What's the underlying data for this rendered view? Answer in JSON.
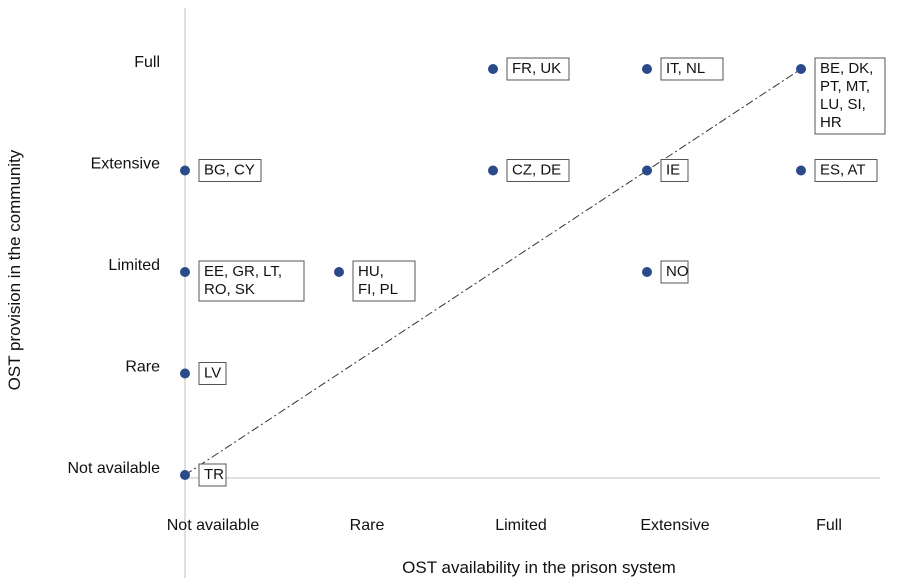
{
  "chart_data": {
    "type": "scatter",
    "title": "",
    "xlabel": "OST availability in the prison system",
    "ylabel": "OST provision in the community",
    "levels": [
      "Not available",
      "Rare",
      "Limited",
      "Extensive",
      "Full"
    ],
    "x_tick_labels": [
      "Not available",
      "Rare",
      "Limited",
      "Extensive",
      "Full"
    ],
    "y_tick_labels": [
      "Not available",
      "Rare",
      "Limited",
      "Extensive",
      "Full"
    ],
    "xlim": [
      0,
      4
    ],
    "ylim": [
      0,
      4
    ],
    "grid": false,
    "reference_line": {
      "style": "dash-dot",
      "from": [
        0,
        0
      ],
      "to": [
        4,
        4
      ]
    },
    "points": [
      {
        "x": 2,
        "y": 4,
        "label_lines": [
          "FR, UK"
        ]
      },
      {
        "x": 3,
        "y": 4,
        "label_lines": [
          "IT, NL"
        ]
      },
      {
        "x": 4,
        "y": 4,
        "label_lines": [
          "BE, DK,",
          "PT, MT,",
          "LU, SI,",
          "HR"
        ]
      },
      {
        "x": 0,
        "y": 3,
        "label_lines": [
          "BG, CY"
        ]
      },
      {
        "x": 2,
        "y": 3,
        "label_lines": [
          "CZ, DE"
        ]
      },
      {
        "x": 3,
        "y": 3,
        "label_lines": [
          "IE"
        ]
      },
      {
        "x": 4,
        "y": 3,
        "label_lines": [
          "ES, AT"
        ]
      },
      {
        "x": 0,
        "y": 2,
        "label_lines": [
          "EE, GR, LT,",
          "RO, SK"
        ]
      },
      {
        "x": 1,
        "y": 2,
        "label_lines": [
          "HU,",
          "FI, PL"
        ]
      },
      {
        "x": 3,
        "y": 2,
        "label_lines": [
          "NO"
        ]
      },
      {
        "x": 0,
        "y": 1,
        "label_lines": [
          "LV"
        ]
      },
      {
        "x": 0,
        "y": 0,
        "label_lines": [
          "TR"
        ]
      }
    ],
    "colors": {
      "marker": "#2b4a8b",
      "axis": "#bfbfbf",
      "reference_line": "#333333",
      "label_border": "#555555"
    }
  }
}
